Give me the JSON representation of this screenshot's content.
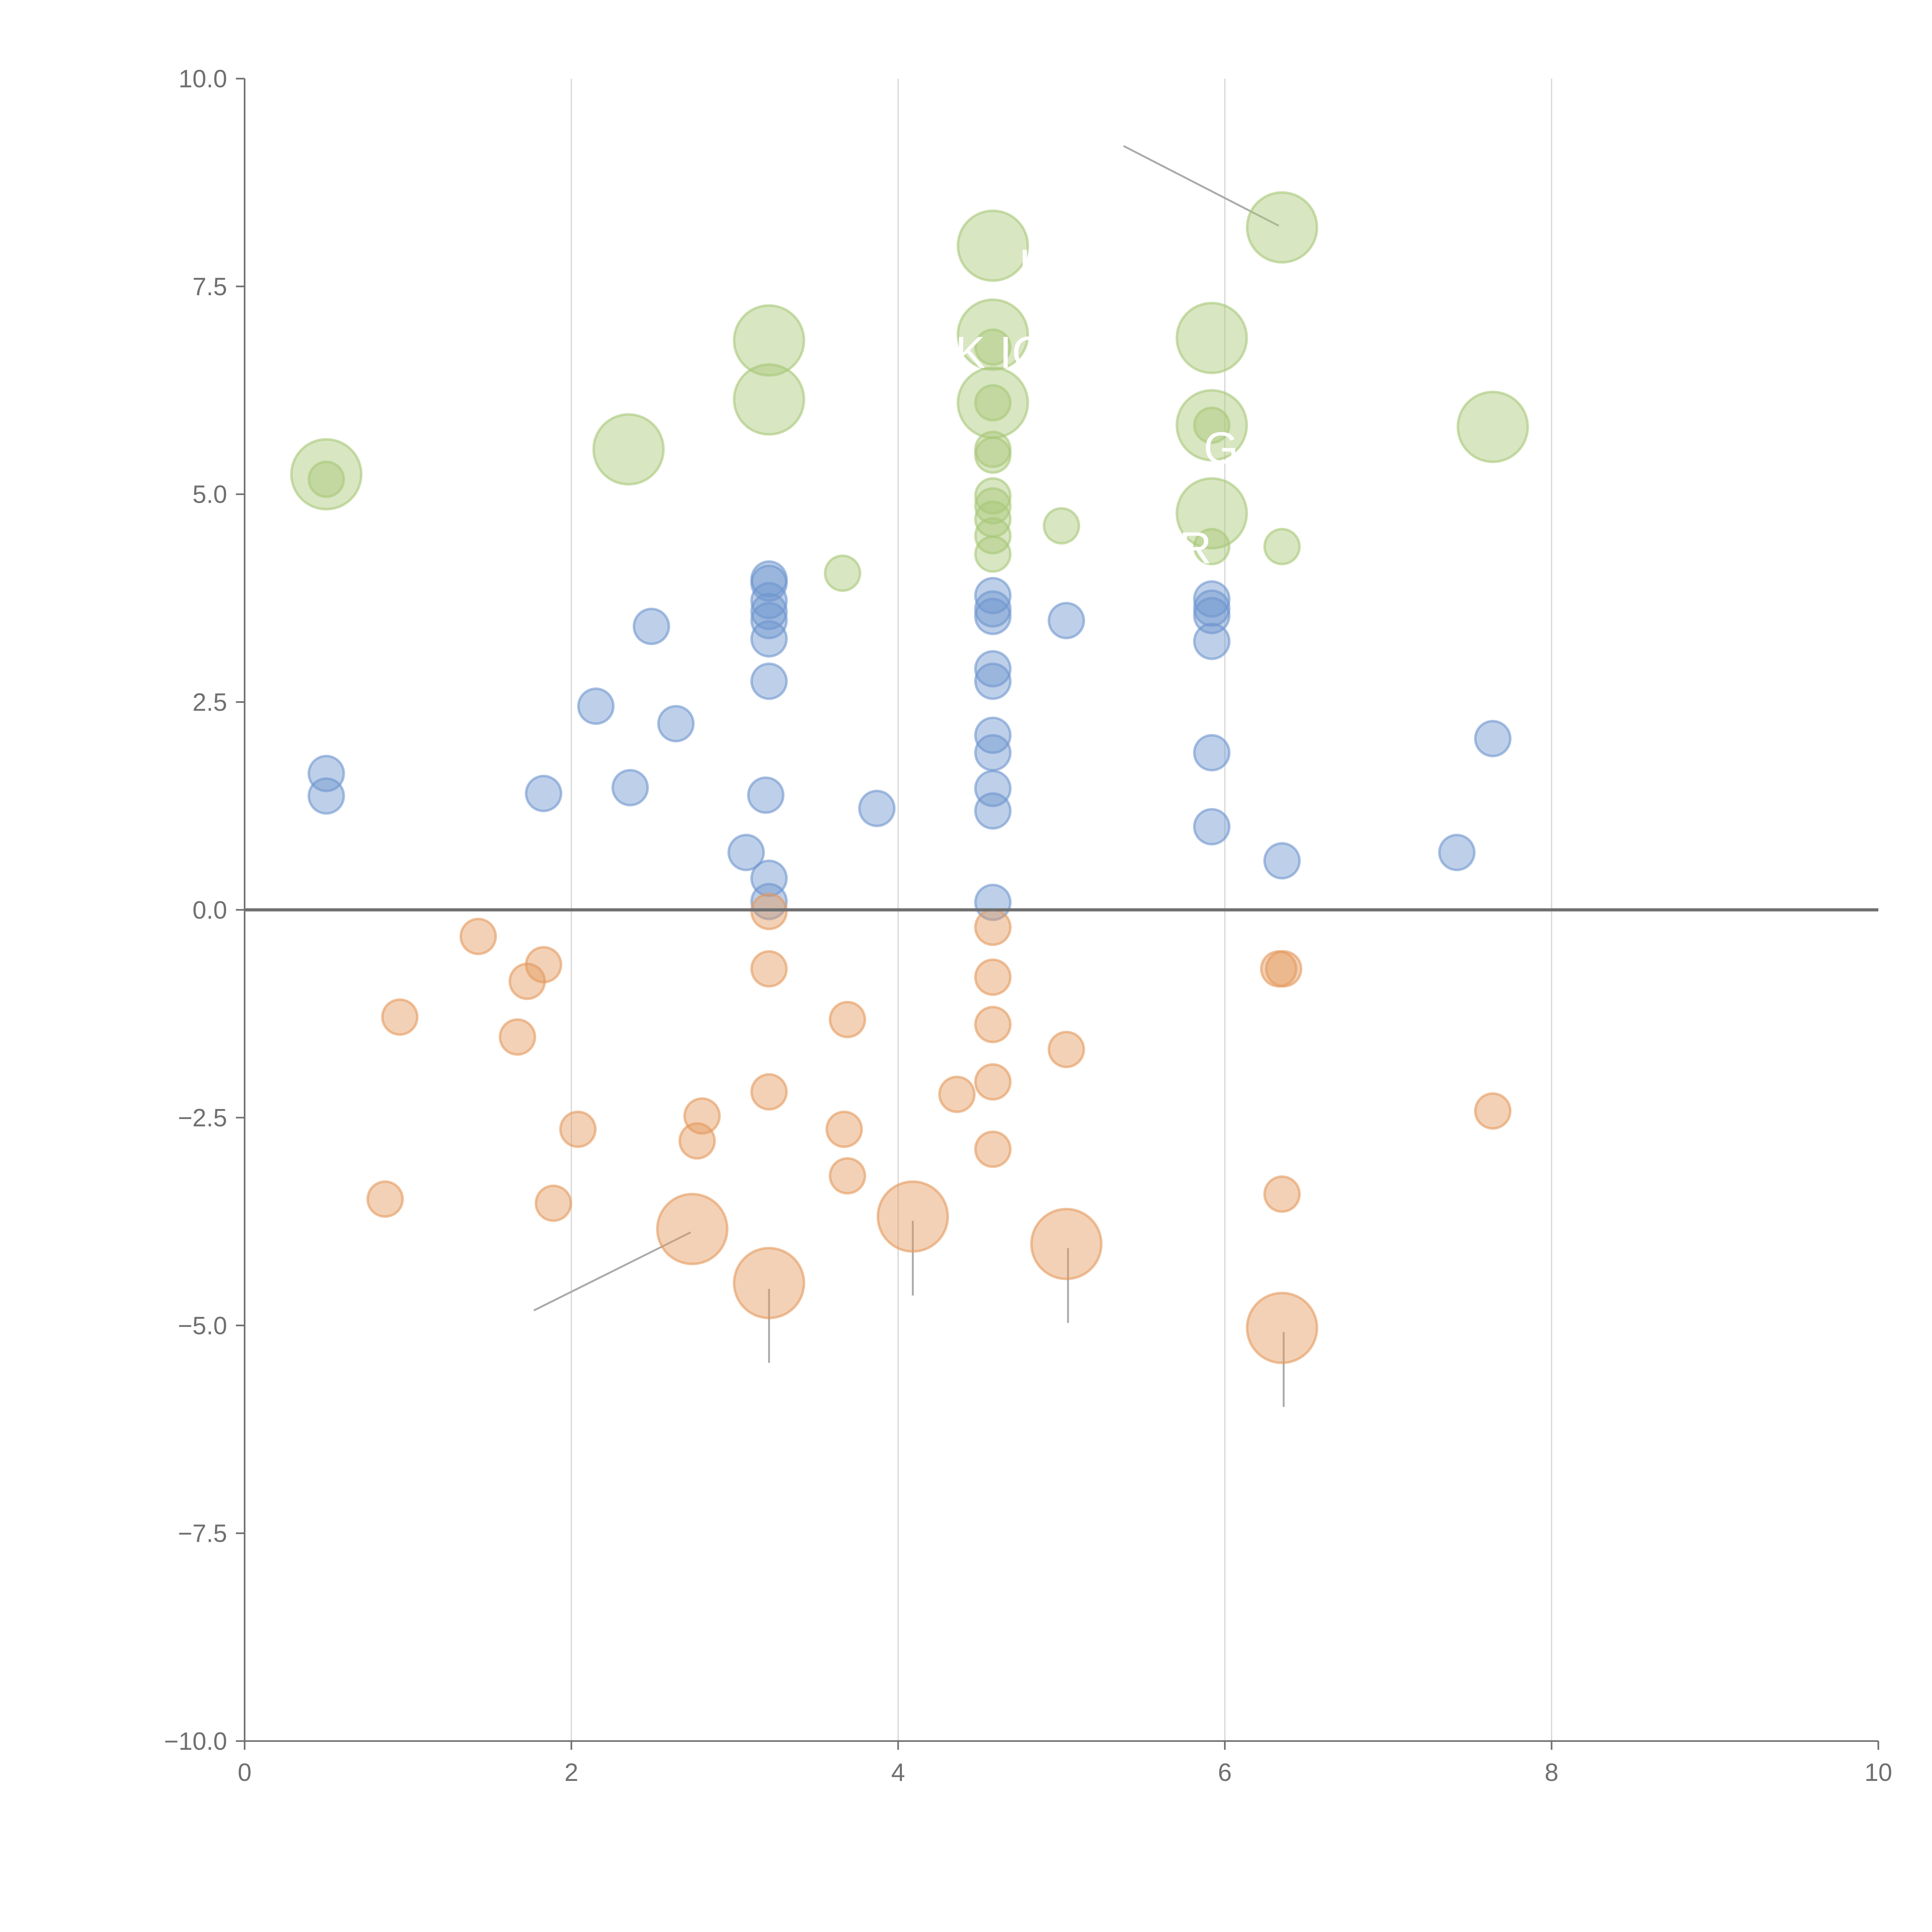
{
  "chart_data": {
    "type": "scatter",
    "title": "",
    "xlabel": "",
    "ylabel": "",
    "xlim": [
      0,
      10
    ],
    "ylim": [
      -10,
      10
    ],
    "grid": "vertical",
    "x_ticks": [
      "0",
      "2",
      "4",
      "6",
      "8",
      "10"
    ],
    "y_ticks": [
      "10.0",
      "7.5",
      "5.0",
      "2.5",
      "0.0",
      "−2.5",
      "−5.0",
      "−7.5",
      "−10.0"
    ],
    "size_note": "point size: 1 = small, 2 = large",
    "series": [
      {
        "name": "green",
        "color": "#a8c878",
        "points": [
          [
            0.5,
            5.24,
            2
          ],
          [
            0.5,
            5.18,
            1
          ],
          [
            2.35,
            5.54,
            2
          ],
          [
            3.21,
            6.85,
            2
          ],
          [
            3.21,
            6.14,
            2
          ],
          [
            3.66,
            4.05,
            1
          ],
          [
            4.58,
            7.99,
            2
          ],
          [
            4.58,
            6.92,
            2
          ],
          [
            4.58,
            6.77,
            1
          ],
          [
            4.58,
            6.1,
            2
          ],
          [
            4.58,
            6.1,
            1
          ],
          [
            4.58,
            5.54,
            1
          ],
          [
            4.58,
            5.47,
            1
          ],
          [
            4.58,
            4.98,
            1
          ],
          [
            4.58,
            4.86,
            1
          ],
          [
            4.58,
            4.7,
            1
          ],
          [
            4.58,
            4.5,
            1
          ],
          [
            4.58,
            4.28,
            1
          ],
          [
            5.0,
            4.62,
            1
          ],
          [
            5.92,
            6.88,
            2
          ],
          [
            5.92,
            5.83,
            2
          ],
          [
            5.92,
            5.83,
            1
          ],
          [
            5.92,
            4.77,
            2
          ],
          [
            5.92,
            4.37,
            1
          ],
          [
            6.35,
            8.21,
            2
          ],
          [
            6.35,
            4.37,
            1
          ],
          [
            7.64,
            5.81,
            2
          ]
        ]
      },
      {
        "name": "blue",
        "color": "#6f96cf",
        "points": [
          [
            0.5,
            1.64,
            1
          ],
          [
            0.5,
            1.37,
            1
          ],
          [
            1.83,
            1.4,
            1
          ],
          [
            2.15,
            2.45,
            1
          ],
          [
            2.36,
            1.47,
            1
          ],
          [
            2.49,
            3.41,
            1
          ],
          [
            2.64,
            2.24,
            1
          ],
          [
            3.07,
            0.69,
            1
          ],
          [
            3.21,
            3.98,
            1
          ],
          [
            3.21,
            3.93,
            1
          ],
          [
            3.21,
            3.72,
            1
          ],
          [
            3.21,
            3.59,
            1
          ],
          [
            3.21,
            3.48,
            1
          ],
          [
            3.21,
            3.26,
            1
          ],
          [
            3.21,
            2.75,
            1
          ],
          [
            3.19,
            1.38,
            1
          ],
          [
            3.21,
            0.38,
            1
          ],
          [
            3.21,
            0.1,
            1
          ],
          [
            3.87,
            1.22,
            1
          ],
          [
            4.58,
            3.78,
            1
          ],
          [
            4.58,
            3.62,
            1
          ],
          [
            4.58,
            3.53,
            1
          ],
          [
            4.58,
            2.9,
            1
          ],
          [
            4.58,
            2.75,
            1
          ],
          [
            4.58,
            2.1,
            1
          ],
          [
            4.58,
            1.89,
            1
          ],
          [
            4.58,
            1.46,
            1
          ],
          [
            4.58,
            1.19,
            1
          ],
          [
            4.58,
            0.09,
            1
          ],
          [
            5.03,
            3.48,
            1
          ],
          [
            5.92,
            3.74,
            1
          ],
          [
            5.92,
            3.63,
            1
          ],
          [
            5.92,
            3.54,
            1
          ],
          [
            5.92,
            3.23,
            1
          ],
          [
            5.92,
            1.89,
            1
          ],
          [
            5.92,
            1.0,
            1
          ],
          [
            6.35,
            0.59,
            1
          ],
          [
            7.42,
            0.69,
            1
          ],
          [
            7.64,
            2.06,
            1
          ]
        ]
      },
      {
        "name": "orange",
        "color": "#e59a5e",
        "points": [
          [
            1.43,
            -0.32,
            1
          ],
          [
            0.95,
            -1.29,
            1
          ],
          [
            1.73,
            -0.86,
            1
          ],
          [
            1.83,
            -0.66,
            1
          ],
          [
            1.67,
            -1.53,
            1
          ],
          [
            0.86,
            -3.48,
            1
          ],
          [
            1.89,
            -3.53,
            1
          ],
          [
            2.04,
            -2.64,
            1
          ],
          [
            2.8,
            -2.48,
            1
          ],
          [
            2.77,
            -2.78,
            1
          ],
          [
            2.74,
            -3.84,
            2
          ],
          [
            3.21,
            -0.02,
            1
          ],
          [
            3.21,
            -0.71,
            1
          ],
          [
            3.21,
            -2.19,
            1
          ],
          [
            3.21,
            -4.49,
            2
          ],
          [
            3.69,
            -1.32,
            1
          ],
          [
            3.67,
            -2.64,
            1
          ],
          [
            3.69,
            -3.2,
            1
          ],
          [
            4.09,
            -3.69,
            2
          ],
          [
            4.36,
            -2.22,
            1
          ],
          [
            4.58,
            -0.21,
            1
          ],
          [
            4.58,
            -0.81,
            1
          ],
          [
            4.58,
            -1.38,
            1
          ],
          [
            4.58,
            -2.07,
            1
          ],
          [
            4.58,
            -2.88,
            1
          ],
          [
            5.03,
            -1.68,
            1
          ],
          [
            5.03,
            -4.02,
            2
          ],
          [
            6.33,
            -0.71,
            1
          ],
          [
            6.36,
            -0.71,
            1
          ],
          [
            6.35,
            -3.42,
            1
          ],
          [
            6.35,
            -5.03,
            2
          ],
          [
            7.64,
            -2.42,
            1
          ]
        ]
      }
    ],
    "annotations": [
      {
        "text": "L",
        "x": 4.74,
        "y": 7.75
      },
      {
        "text": "K",
        "x": 4.35,
        "y": 6.7
      },
      {
        "text": "IO",
        "x": 4.62,
        "y": 6.7
      },
      {
        "text": "G",
        "x": 5.87,
        "y": 5.55
      },
      {
        "text": "R",
        "x": 5.72,
        "y": 4.35
      }
    ],
    "leader_lines": [
      [
        [
          5.38,
          9.19
        ],
        [
          6.33,
          8.23
        ]
      ],
      [
        [
          1.77,
          -4.82
        ],
        [
          2.73,
          -3.88
        ]
      ],
      [
        [
          3.21,
          -4.56
        ],
        [
          3.21,
          -5.45
        ]
      ],
      [
        [
          4.09,
          -3.74
        ],
        [
          4.09,
          -4.64
        ]
      ],
      [
        [
          5.04,
          -4.07
        ],
        [
          5.04,
          -4.97
        ]
      ],
      [
        [
          6.36,
          -5.08
        ],
        [
          6.36,
          -5.98
        ]
      ]
    ]
  }
}
